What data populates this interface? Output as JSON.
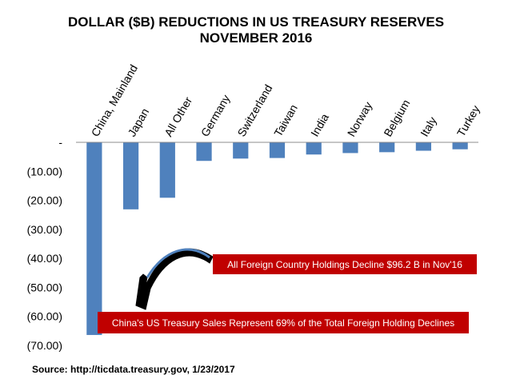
{
  "chart_data": {
    "type": "bar",
    "title": [
      "DOLLAR ($B)  REDUCTIONS IN US TREASURY RESERVES",
      "NOVEMBER 2016"
    ],
    "categories": [
      "China, Mainland",
      "Japan",
      "All Other",
      "Germany",
      "Switzerland",
      "Taiwan",
      "India",
      "Norway",
      "Belgium",
      "Italy",
      "Turkey"
    ],
    "values": [
      -66.4,
      -23.1,
      -19.1,
      -6.4,
      -5.6,
      -5.4,
      -4.2,
      -3.7,
      -3.4,
      -2.9,
      -2.4
    ],
    "ylim": [
      -70,
      0
    ],
    "yticks": [
      0,
      -10,
      -20,
      -30,
      -40,
      -50,
      -60,
      -70
    ],
    "ytick_labels": [
      "-",
      "(10.00)",
      "(20.00)",
      "(30.00)",
      "(40.00)",
      "(50.00)",
      "(60.00)",
      "(70.00)"
    ],
    "xlabel": "",
    "ylabel": "",
    "bar_color": "#4f81bd",
    "annotations": [
      "All Foreign Country Holdings Decline $96.2 B in Nov'16",
      "China's  US Treasury Sales Represent 69% of the Total Foreign Holding Declines"
    ],
    "annotation_color": "#c00000",
    "source": "Source: http://ticdata.treasury.gov, 1/23/2017"
  }
}
